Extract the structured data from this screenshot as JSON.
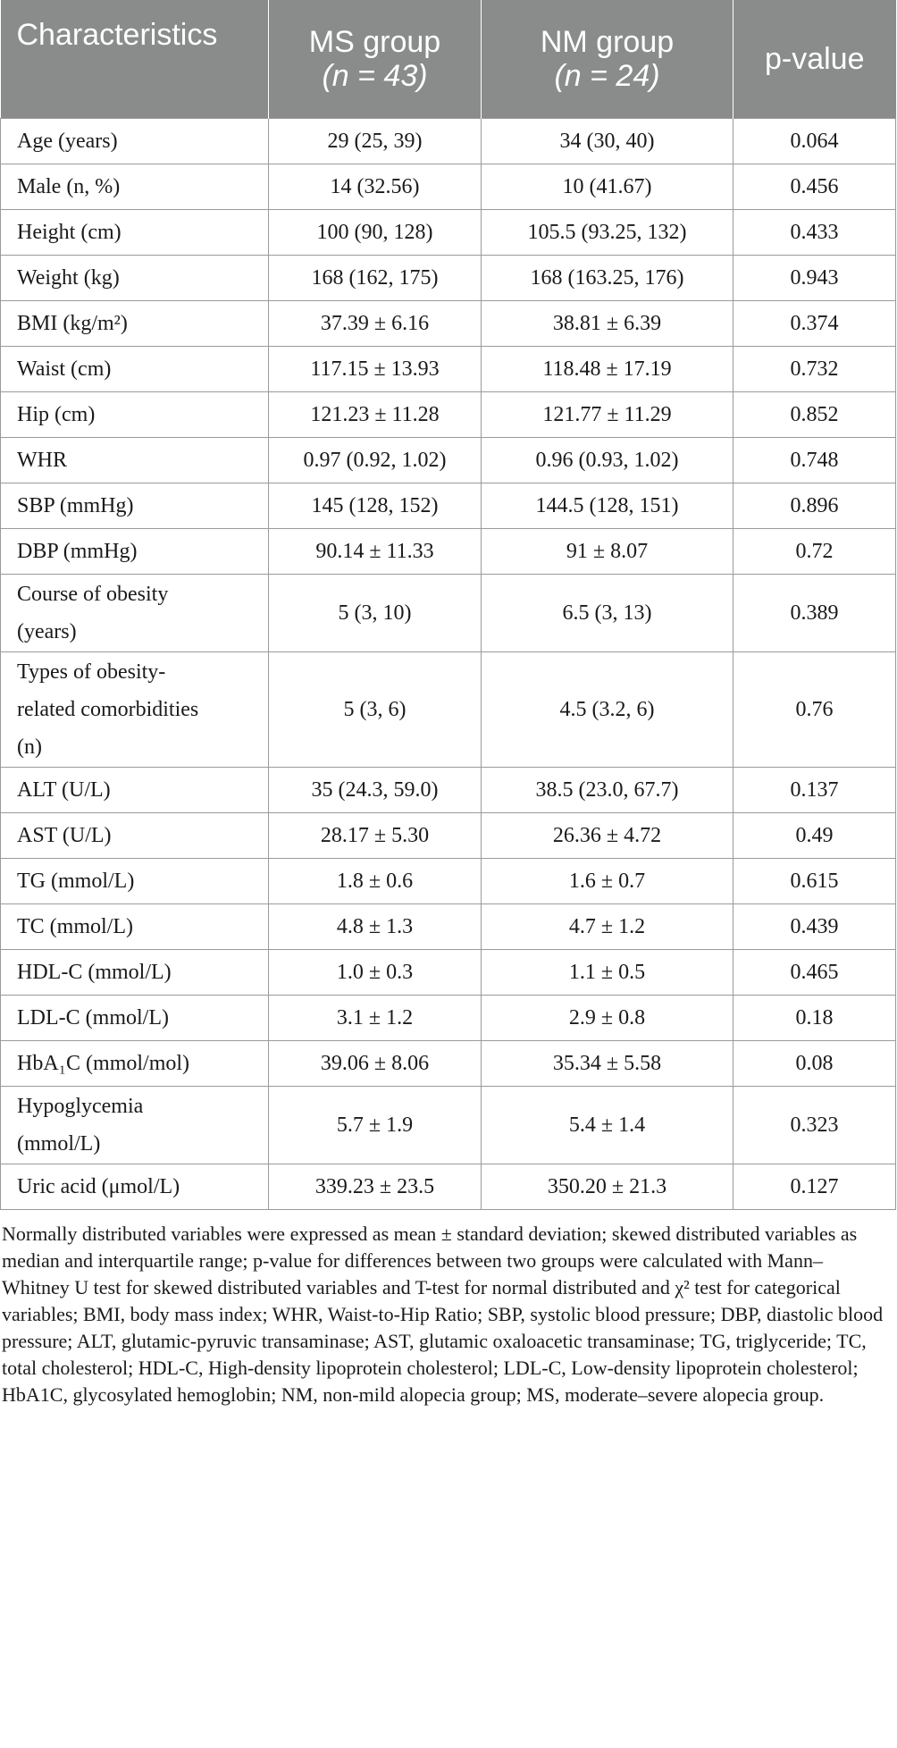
{
  "header": {
    "col1": "Characteristics",
    "col2_line1": "MS group",
    "col2_line2": "(n = 43)",
    "col3_line1": "NM group",
    "col3_line2": "(n = 24)",
    "col4": "p-value"
  },
  "rows": [
    {
      "label": "Age (years)",
      "ms": "29 (25, 39)",
      "nm": "34 (30, 40)",
      "p": "0.064"
    },
    {
      "label": "Male (n, %)",
      "ms": "14 (32.56)",
      "nm": "10 (41.67)",
      "p": "0.456"
    },
    {
      "label": "Height (cm)",
      "ms": "100 (90, 128)",
      "nm": "105.5 (93.25, 132)",
      "p": "0.433"
    },
    {
      "label": "Weight (kg)",
      "ms": "168 (162, 175)",
      "nm": "168 (163.25, 176)",
      "p": "0.943"
    },
    {
      "label": "BMI (kg/m²)",
      "ms": "37.39 ± 6.16",
      "nm": "38.81 ± 6.39",
      "p": "0.374"
    },
    {
      "label": "Waist (cm)",
      "ms": "117.15 ± 13.93",
      "nm": "118.48 ± 17.19",
      "p": "0.732"
    },
    {
      "label": "Hip (cm)",
      "ms": "121.23 ± 11.28",
      "nm": "121.77 ± 11.29",
      "p": "0.852"
    },
    {
      "label": "WHR",
      "ms": "0.97 (0.92, 1.02)",
      "nm": "0.96 (0.93, 1.02)",
      "p": "0.748"
    },
    {
      "label": "SBP (mmHg)",
      "ms": "145 (128, 152)",
      "nm": "144.5 (128, 151)",
      "p": "0.896"
    },
    {
      "label": "DBP (mmHg)",
      "ms": "90.14 ± 11.33",
      "nm": "91 ± 8.07",
      "p": "0.72"
    },
    {
      "label_lines": [
        "Course of obesity",
        "(years)"
      ],
      "ms": "5 (3, 10)",
      "nm": "6.5 (3, 13)",
      "p": "0.389"
    },
    {
      "label_lines": [
        "Types of obesity-",
        "related comorbidities",
        "(n)"
      ],
      "ms": "5 (3, 6)",
      "nm": "4.5 (3.2, 6)",
      "p": "0.76"
    },
    {
      "label": "ALT (U/L)",
      "ms": "35 (24.3, 59.0)",
      "nm": "38.5 (23.0, 67.7)",
      "p": "0.137"
    },
    {
      "label": "AST (U/L)",
      "ms": "28.17 ± 5.30",
      "nm": "26.36 ± 4.72",
      "p": "0.49"
    },
    {
      "label": "TG (mmol/L)",
      "ms": "1.8 ± 0.6",
      "nm": "1.6 ± 0.7",
      "p": "0.615"
    },
    {
      "label": "TC (mmol/L)",
      "ms": "4.8 ± 1.3",
      "nm": "4.7 ± 1.2",
      "p": "0.439"
    },
    {
      "label": "HDL-C (mmol/L)",
      "ms": "1.0 ± 0.3",
      "nm": "1.1 ± 0.5",
      "p": "0.465"
    },
    {
      "label": "LDL-C (mmol/L)",
      "ms": "3.1 ± 1.2",
      "nm": "2.9 ± 0.8",
      "p": "0.18"
    },
    {
      "label": "HbA₁C (mmol/mol)",
      "ms": "39.06 ± 8.06",
      "nm": "35.34 ± 5.58",
      "p": "0.08"
    },
    {
      "label_lines": [
        "Hypoglycemia",
        "(mmol/L)"
      ],
      "ms": "5.7 ± 1.9",
      "nm": "5.4 ± 1.4",
      "p": "0.323"
    },
    {
      "label": "Uric acid (μmol/L)",
      "ms": "339.23 ± 23.5",
      "nm": "350.20 ± 21.3",
      "p": "0.127"
    }
  ],
  "footnote": "Normally distributed variables were expressed as mean ± standard deviation; skewed distributed variables as median and interquartile range; p-value for differences between two groups were calculated with Mann–Whitney U test for skewed distributed variables and T-test for normal distributed and χ² test for categorical variables; BMI, body mass index; WHR, Waist-to-Hip Ratio; SBP, systolic blood pressure; DBP, diastolic blood pressure; ALT, glutamic-pyruvic transaminase; AST, glutamic oxaloacetic transaminase; TG, triglyceride; TC, total cholesterol; HDL-C, High-density lipoprotein cholesterol; LDL-C, Low-density lipoprotein cholesterol; HbA1C, glycosylated hemoglobin; NM, non-mild alopecia group; MS, moderate–severe alopecia group.",
  "colors": {
    "header_bg": "#8a8b8b",
    "header_text": "#ffffff",
    "border": "#9a9a9a"
  }
}
